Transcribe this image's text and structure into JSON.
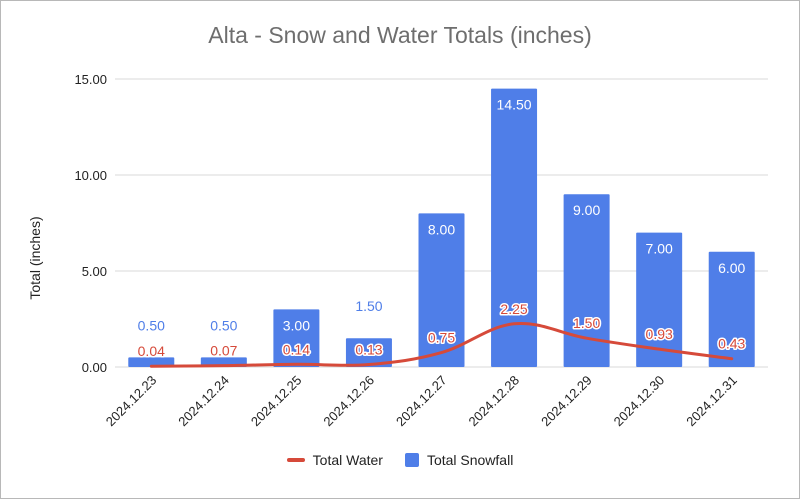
{
  "chart_data": {
    "type": "bar",
    "title": "Alta - Snow and Water Totals (inches)",
    "xlabel": "",
    "ylabel": "Total (inches)",
    "ylim": [
      0,
      15
    ],
    "yticks": [
      "0.00",
      "5.00",
      "10.00",
      "15.00"
    ],
    "ytick_values": [
      0,
      5,
      10,
      15
    ],
    "grid": true,
    "legend_position": "bottom",
    "categories": [
      "2024.12.23",
      "2024.12.24",
      "2024.12.25",
      "2024.12.26",
      "2024.12.27",
      "2024.12.28",
      "2024.12.29",
      "2024.12.30",
      "2024.12.31"
    ],
    "series": [
      {
        "name": "Total Snowfall",
        "type": "bar",
        "color": "#4f7ee8",
        "values": [
          0.5,
          0.5,
          3.0,
          1.5,
          8.0,
          14.5,
          9.0,
          7.0,
          6.0
        ],
        "labels": [
          "0.50",
          "0.50",
          "3.00",
          "1.50",
          "8.00",
          "14.50",
          "9.00",
          "7.00",
          "6.00"
        ]
      },
      {
        "name": "Total Water",
        "type": "line",
        "color": "#d64a3a",
        "values": [
          0.04,
          0.07,
          0.14,
          0.13,
          0.75,
          2.25,
          1.5,
          0.93,
          0.43
        ],
        "labels": [
          "0.04",
          "0.07",
          "0.14",
          "0.13",
          "0.75",
          "2.25",
          "1.50",
          "0.93",
          "0.43"
        ]
      }
    ]
  }
}
